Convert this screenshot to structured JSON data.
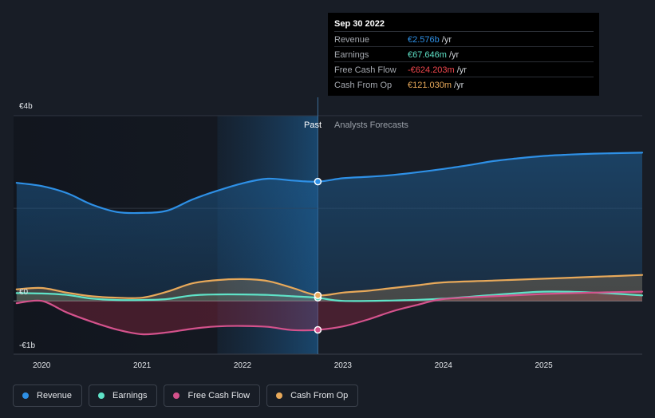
{
  "tooltip": {
    "date": "Sep 30 2022",
    "rows": [
      {
        "label": "Revenue",
        "value": "€2.576b",
        "unit": "/yr",
        "color": "#2e90e6"
      },
      {
        "label": "Earnings",
        "value": "€67.646m",
        "unit": "/yr",
        "color": "#5fe3c8"
      },
      {
        "label": "Free Cash Flow",
        "value": "-€624.203m",
        "unit": "/yr",
        "color": "#f0474d"
      },
      {
        "label": "Cash From Op",
        "value": "€121.030m",
        "unit": "/yr",
        "color": "#e8a95a"
      }
    ]
  },
  "legend": [
    {
      "label": "Revenue",
      "color": "#2e90e6"
    },
    {
      "label": "Earnings",
      "color": "#5fe3c8"
    },
    {
      "label": "Free Cash Flow",
      "color": "#d4528c"
    },
    {
      "label": "Cash From Op",
      "color": "#e8a95a"
    }
  ],
  "chart_data": {
    "type": "line",
    "title": "",
    "y_tick_labels": [
      "€4b",
      "€0",
      "-€1b"
    ],
    "x_tick_labels": [
      "2020",
      "2021",
      "2022",
      "2023",
      "2024",
      "2025"
    ],
    "region_past": "Past",
    "region_forecast": "Analysts Forecasts",
    "ylim": [
      -1.15,
      4.0
    ],
    "xlim": [
      2019.72,
      2025.98
    ],
    "divider_x": 2022.75,
    "series": [
      {
        "name": "Revenue",
        "color": "#2e90e6",
        "x": [
          2019.75,
          2020.0,
          2020.25,
          2020.5,
          2020.75,
          2021.0,
          2021.25,
          2021.5,
          2021.75,
          2022.0,
          2022.25,
          2022.5,
          2022.75,
          2023.0,
          2023.25,
          2023.5,
          2023.75,
          2024.0,
          2024.25,
          2024.5,
          2024.75,
          2025.0,
          2025.25,
          2025.5,
          2025.98
        ],
        "values": [
          2.55,
          2.48,
          2.33,
          2.08,
          1.92,
          1.9,
          1.95,
          2.19,
          2.38,
          2.54,
          2.64,
          2.6,
          2.576,
          2.65,
          2.68,
          2.72,
          2.78,
          2.85,
          2.93,
          3.02,
          3.08,
          3.13,
          3.16,
          3.18,
          3.2
        ]
      },
      {
        "name": "Earnings",
        "color": "#5fe3c8",
        "x": [
          2019.75,
          2020.0,
          2020.25,
          2020.5,
          2020.75,
          2021.0,
          2021.25,
          2021.5,
          2021.75,
          2022.0,
          2022.25,
          2022.5,
          2022.75,
          2023.0,
          2023.5,
          2024.0,
          2024.5,
          2025.0,
          2025.5,
          2025.98
        ],
        "values": [
          0.17,
          0.16,
          0.13,
          0.05,
          0.02,
          0.02,
          0.04,
          0.12,
          0.14,
          0.14,
          0.13,
          0.1,
          0.068,
          0.0,
          0.01,
          0.05,
          0.13,
          0.2,
          0.18,
          0.12
        ]
      },
      {
        "name": "Free Cash Flow",
        "color": "#d4528c",
        "x": [
          2019.75,
          2020.0,
          2020.25,
          2020.5,
          2020.75,
          2021.0,
          2021.25,
          2021.5,
          2021.75,
          2022.0,
          2022.25,
          2022.5,
          2022.75,
          2023.0,
          2023.25,
          2023.5,
          2023.75,
          2024.0,
          2024.5,
          2025.0,
          2025.5,
          2025.98
        ],
        "values": [
          -0.05,
          0.0,
          -0.25,
          -0.45,
          -0.62,
          -0.72,
          -0.68,
          -0.6,
          -0.55,
          -0.54,
          -0.56,
          -0.63,
          -0.624,
          -0.55,
          -0.4,
          -0.22,
          -0.08,
          0.04,
          0.1,
          0.15,
          0.18,
          0.2
        ]
      },
      {
        "name": "Cash From Op",
        "color": "#e8a95a",
        "x": [
          2019.75,
          2020.0,
          2020.25,
          2020.5,
          2020.75,
          2021.0,
          2021.25,
          2021.5,
          2021.75,
          2022.0,
          2022.25,
          2022.5,
          2022.75,
          2023.0,
          2023.25,
          2023.5,
          2023.75,
          2024.0,
          2024.5,
          2025.0,
          2025.5,
          2025.98
        ],
        "values": [
          0.25,
          0.28,
          0.18,
          0.1,
          0.07,
          0.07,
          0.2,
          0.38,
          0.45,
          0.47,
          0.43,
          0.28,
          0.121,
          0.18,
          0.22,
          0.28,
          0.34,
          0.4,
          0.44,
          0.48,
          0.52,
          0.56
        ]
      }
    ],
    "markers": [
      {
        "series": "Revenue",
        "x": 2022.75,
        "value": 2.576
      },
      {
        "series": "Earnings",
        "x": 2022.75,
        "value": 0.068
      },
      {
        "series": "Free Cash Flow",
        "x": 2022.75,
        "value": -0.624
      },
      {
        "series": "Cash From Op",
        "x": 2022.75,
        "value": 0.121
      }
    ]
  }
}
